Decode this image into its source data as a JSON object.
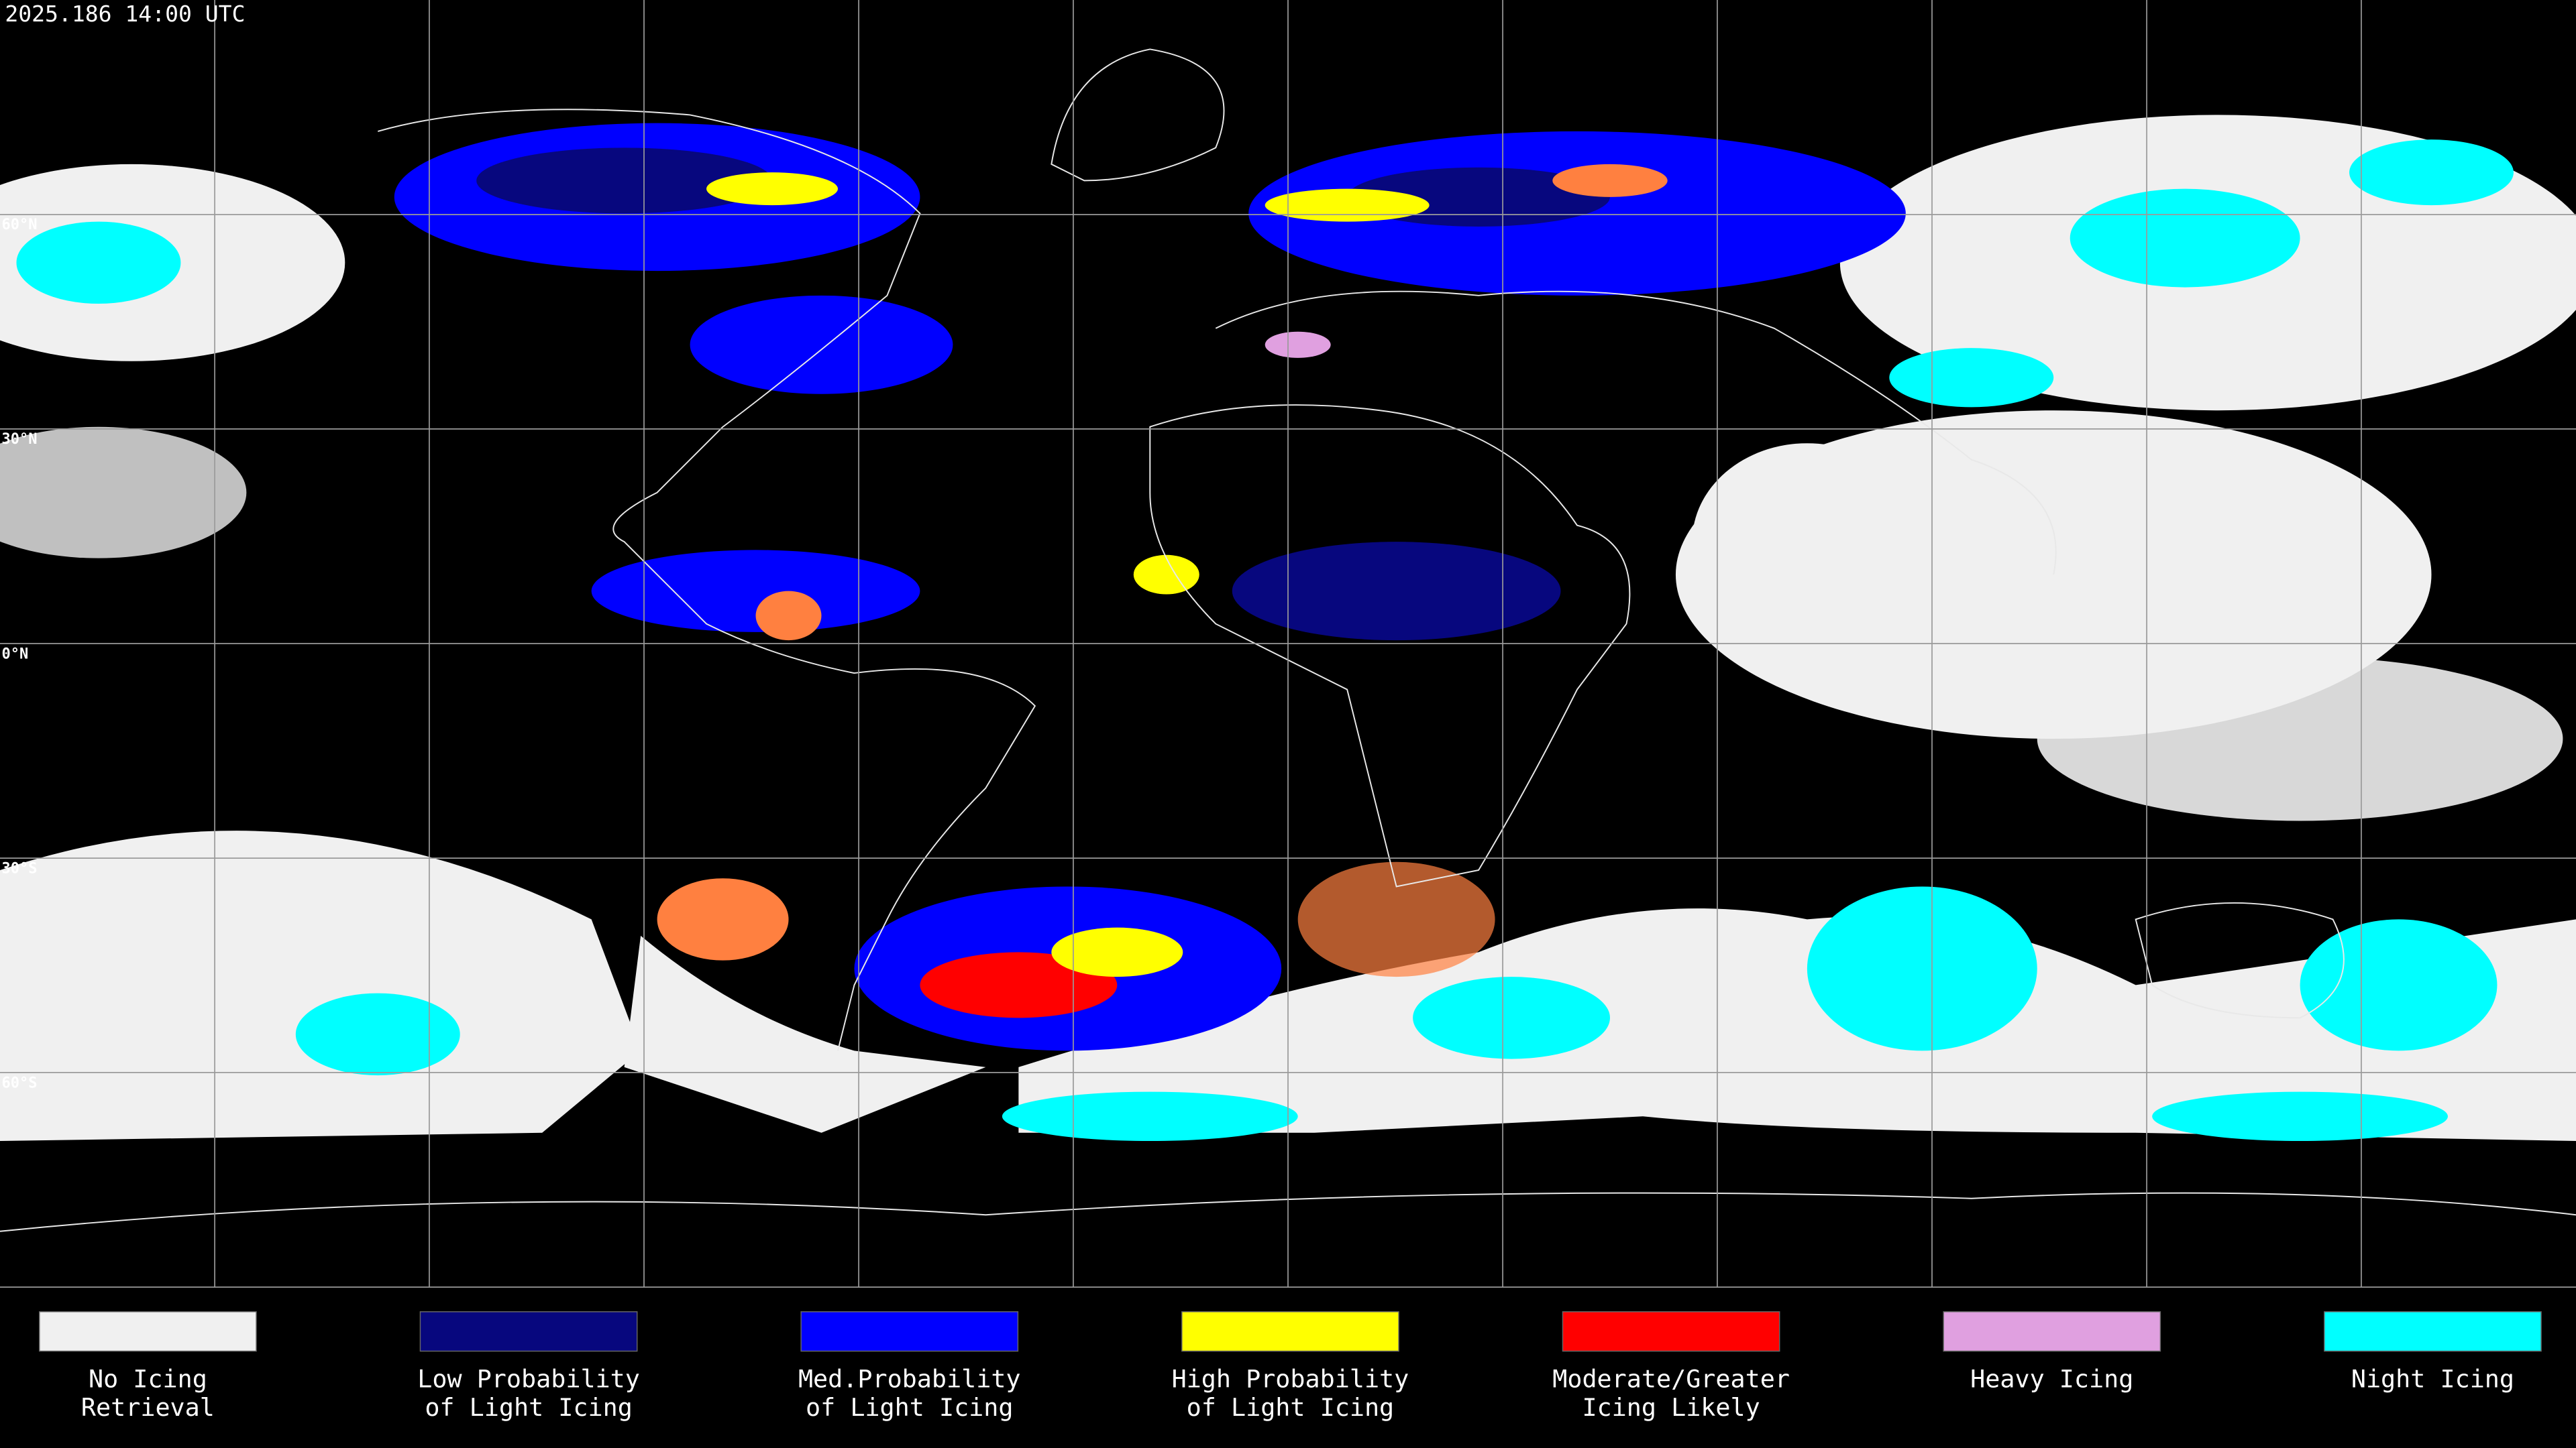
{
  "header": {
    "title": "2025.186 14:00 UTC"
  },
  "map": {
    "latitude_labels": [
      "60°N",
      "30°N",
      "0°N",
      "30°S",
      "60°S"
    ]
  },
  "legend": {
    "items": [
      {
        "lines": [
          "No Icing",
          "Retrieval"
        ],
        "color": "#f0f0f0"
      },
      {
        "lines": [
          "Low Probability",
          "of Light Icing"
        ],
        "color": "#07077e"
      },
      {
        "lines": [
          "Med.Probability",
          "of Light Icing"
        ],
        "color": "#0000ff"
      },
      {
        "lines": [
          "High Probability",
          "of Light Icing"
        ],
        "color": "#ffff00"
      },
      {
        "lines": [
          "Moderate/Greater",
          "Icing Likely"
        ],
        "color": "#ff0000"
      },
      {
        "lines": [
          "Heavy Icing"
        ],
        "color": "#e0a0e0"
      },
      {
        "lines": [
          "Night Icing"
        ],
        "color": "#00ffff"
      }
    ]
  }
}
